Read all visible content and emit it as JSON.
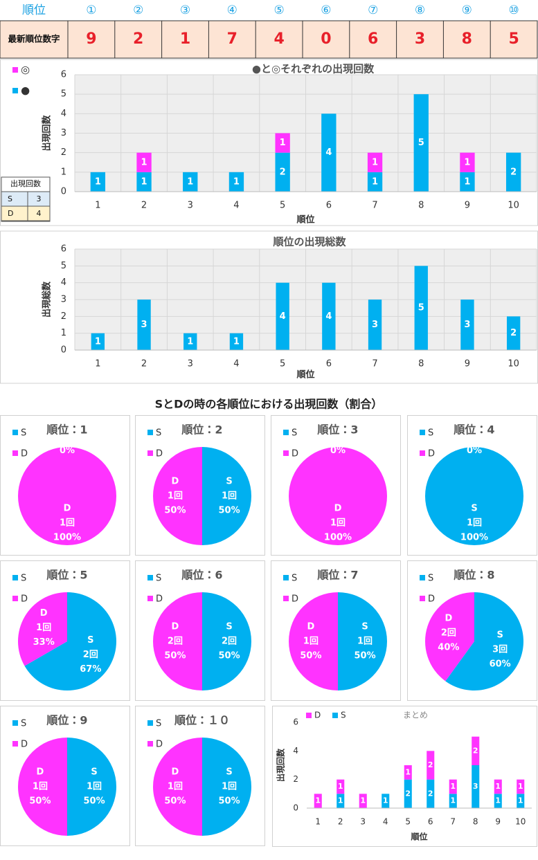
{
  "table": {
    "header": [
      "順位",
      "①",
      "②",
      "③",
      "④",
      "⑤",
      "⑥",
      "⑦",
      "⑧",
      "⑨",
      "⑩"
    ],
    "row": {
      "label": "最新順位数字",
      "values": [
        9,
        2,
        1,
        7,
        4,
        0,
        6,
        3,
        8,
        5
      ]
    }
  },
  "count_table": {
    "header": "出現回数",
    "rows": [
      [
        "S",
        3
      ],
      [
        "D",
        4
      ]
    ]
  },
  "pie_section_title": "SとDの時の各順位における出現回数（割合）",
  "chart_data": [
    {
      "type": "bar",
      "title": "●と◎それぞれの出現回数",
      "x_label": "順位",
      "y_label": "出現回数",
      "categories": [
        "1",
        "2",
        "3",
        "4",
        "5",
        "6",
        "7",
        "8",
        "9",
        "10"
      ],
      "series": [
        {
          "name": "●",
          "color": "#00b0f0",
          "values": [
            1,
            1,
            1,
            1,
            2,
            4,
            1,
            5,
            1,
            2
          ]
        },
        {
          "name": "◎",
          "color": "#ff33ff",
          "values": [
            0,
            1,
            0,
            0,
            1,
            0,
            1,
            0,
            1,
            0
          ]
        }
      ],
      "ylim": [
        0,
        6
      ],
      "yticks": [
        0,
        1,
        2,
        3,
        4,
        5,
        6
      ],
      "grid": true,
      "plot_background": "#eeeeee",
      "show_zero_labels": false
    },
    {
      "type": "bar",
      "title": "順位の出現総数",
      "x_label": "順位",
      "y_label": "出現総数",
      "categories": [
        "1",
        "2",
        "3",
        "4",
        "5",
        "6",
        "7",
        "8",
        "9",
        "10"
      ],
      "color": "#00b0f0",
      "values": [
        1,
        3,
        1,
        1,
        4,
        4,
        3,
        5,
        3,
        2
      ],
      "ylim": [
        0,
        6
      ],
      "yticks": [
        0,
        1,
        2,
        3,
        4,
        5,
        6
      ],
      "grid": true,
      "plot_background": "#eeeeee",
      "show_zero_labels": false
    },
    {
      "type": "pie",
      "title": "順位：1",
      "categories": [
        "S",
        "D"
      ],
      "colors": [
        "#00b0f0",
        "#ff33ff"
      ],
      "values": [
        0,
        1
      ],
      "count_labels": [
        null,
        "1回"
      ],
      "percent_labels": [
        "0%",
        "100%"
      ]
    },
    {
      "type": "pie",
      "title": "順位：2",
      "categories": [
        "S",
        "D"
      ],
      "colors": [
        "#00b0f0",
        "#ff33ff"
      ],
      "values": [
        1,
        1
      ],
      "count_labels": [
        "1回",
        "1回"
      ],
      "percent_labels": [
        "50%",
        "50%"
      ]
    },
    {
      "type": "pie",
      "title": "順位：3",
      "categories": [
        "S",
        "D"
      ],
      "colors": [
        "#00b0f0",
        "#ff33ff"
      ],
      "values": [
        0,
        1
      ],
      "count_labels": [
        null,
        "1回"
      ],
      "percent_labels": [
        "0%",
        "100%"
      ]
    },
    {
      "type": "pie",
      "title": "順位：4",
      "categories": [
        "S",
        "D"
      ],
      "colors": [
        "#00b0f0",
        "#ff33ff"
      ],
      "values": [
        1,
        0
      ],
      "count_labels": [
        "1回",
        null
      ],
      "percent_labels": [
        "100%",
        "0%"
      ]
    },
    {
      "type": "pie",
      "title": "順位：5",
      "categories": [
        "S",
        "D"
      ],
      "colors": [
        "#00b0f0",
        "#ff33ff"
      ],
      "values": [
        2,
        1
      ],
      "count_labels": [
        "2回",
        "1回"
      ],
      "percent_labels": [
        "67%",
        "33%"
      ]
    },
    {
      "type": "pie",
      "title": "順位：6",
      "categories": [
        "S",
        "D"
      ],
      "colors": [
        "#00b0f0",
        "#ff33ff"
      ],
      "values": [
        2,
        2
      ],
      "count_labels": [
        "2回",
        "2回"
      ],
      "percent_labels": [
        "50%",
        "50%"
      ]
    },
    {
      "type": "pie",
      "title": "順位：7",
      "categories": [
        "S",
        "D"
      ],
      "colors": [
        "#00b0f0",
        "#ff33ff"
      ],
      "values": [
        1,
        1
      ],
      "count_labels": [
        "1回",
        "1回"
      ],
      "percent_labels": [
        "50%",
        "50%"
      ]
    },
    {
      "type": "pie",
      "title": "順位：8",
      "categories": [
        "S",
        "D"
      ],
      "colors": [
        "#00b0f0",
        "#ff33ff"
      ],
      "values": [
        3,
        2
      ],
      "count_labels": [
        "3回",
        "2回"
      ],
      "percent_labels": [
        "60%",
        "40%"
      ]
    },
    {
      "type": "pie",
      "title": "順位：9",
      "categories": [
        "S",
        "D"
      ],
      "colors": [
        "#00b0f0",
        "#ff33ff"
      ],
      "values": [
        1,
        1
      ],
      "count_labels": [
        "1回",
        "1回"
      ],
      "percent_labels": [
        "50%",
        "50%"
      ]
    },
    {
      "type": "pie",
      "title": "順位：１０",
      "categories": [
        "S",
        "D"
      ],
      "colors": [
        "#00b0f0",
        "#ff33ff"
      ],
      "values": [
        1,
        1
      ],
      "count_labels": [
        "1回",
        "1回"
      ],
      "percent_labels": [
        "50%",
        "50%"
      ]
    },
    {
      "type": "bar",
      "title": "まとめ",
      "x_label": "順位",
      "y_label": "出現回数",
      "categories": [
        "1",
        "2",
        "3",
        "4",
        "5",
        "6",
        "7",
        "8",
        "9",
        "10"
      ],
      "series": [
        {
          "name": "S",
          "color": "#00b0f0",
          "values": [
            0,
            1,
            0,
            1,
            2,
            2,
            1,
            3,
            1,
            1
          ]
        },
        {
          "name": "D",
          "color": "#ff33ff",
          "values": [
            1,
            1,
            1,
            0,
            1,
            2,
            1,
            2,
            1,
            1
          ]
        }
      ],
      "ylim": [
        0,
        6
      ],
      "yticks": [
        0,
        2,
        4,
        6
      ],
      "grid": false,
      "show_zero_labels": true
    }
  ]
}
